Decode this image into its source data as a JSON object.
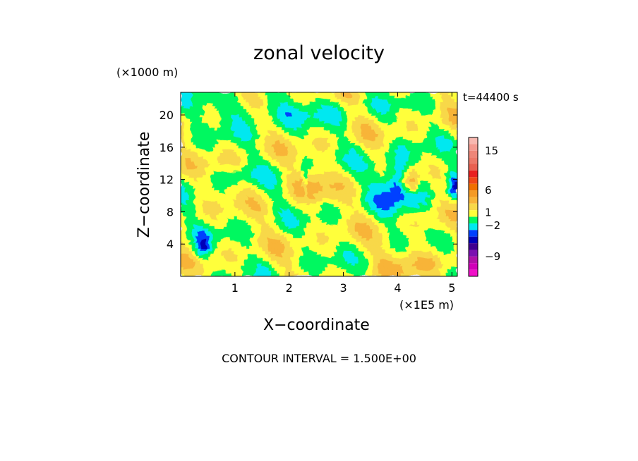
{
  "chart_data": {
    "type": "heatmap",
    "title": "zonal velocity",
    "xlabel": "X−coordinate",
    "ylabel": "Z−coordinate",
    "x_unit": "(×1E5 m)",
    "y_unit": "(×1000 m)",
    "time_label": "t=44400 s",
    "footer": "CONTOUR INTERVAL = 1.500E+00",
    "xlim": [
      0,
      5.1
    ],
    "ylim": [
      0,
      22.8
    ],
    "x_ticks": [
      1,
      2,
      3,
      4,
      5
    ],
    "y_ticks": [
      4,
      8,
      12,
      16,
      20
    ],
    "colorbar": {
      "levels": [
        {
          "range": [
            16.5,
            18
          ],
          "color": "#f8b8b0"
        },
        {
          "range": [
            15,
            16.5
          ],
          "color": "#f49a90"
        },
        {
          "range": [
            13.5,
            15
          ],
          "color": "#ee8678"
        },
        {
          "range": [
            12,
            13.5
          ],
          "color": "#ec7868"
        },
        {
          "range": [
            10.5,
            12
          ],
          "color": "#e86050"
        },
        {
          "range": [
            9,
            10.5
          ],
          "color": "#e82020"
        },
        {
          "range": [
            7.5,
            9
          ],
          "color": "#f04818"
        },
        {
          "range": [
            6,
            7.5
          ],
          "color": "#f07000"
        },
        {
          "range": [
            4.5,
            6
          ],
          "color": "#f49a26"
        },
        {
          "range": [
            3,
            4.5
          ],
          "color": "#f8b438"
        },
        {
          "range": [
            1.5,
            3
          ],
          "color": "#f8d848"
        },
        {
          "range": [
            0,
            1.5
          ],
          "color": "#ffff3a"
        },
        {
          "range": [
            -1.5,
            0
          ],
          "color": "#00f860"
        },
        {
          "range": [
            -3,
            -1.5
          ],
          "color": "#00e8f0"
        },
        {
          "range": [
            -4.5,
            -3
          ],
          "color": "#0040ff"
        },
        {
          "range": [
            -6,
            -4.5
          ],
          "color": "#0000b8"
        },
        {
          "range": [
            -7.5,
            -6
          ],
          "color": "#400090"
        },
        {
          "range": [
            -9,
            -7.5
          ],
          "color": "#7a10b0"
        },
        {
          "range": [
            -10.5,
            -9
          ],
          "color": "#b010a8"
        },
        {
          "range": [
            -12,
            -10.5
          ],
          "color": "#d000b8"
        },
        {
          "range": [
            -13.5,
            -12
          ],
          "color": "#f010c8"
        }
      ],
      "tick_values": [
        15,
        6,
        1,
        -2,
        -9
      ],
      "tick_labels": [
        "15",
        "6",
        "1",
        "−2",
        "−9"
      ]
    }
  }
}
